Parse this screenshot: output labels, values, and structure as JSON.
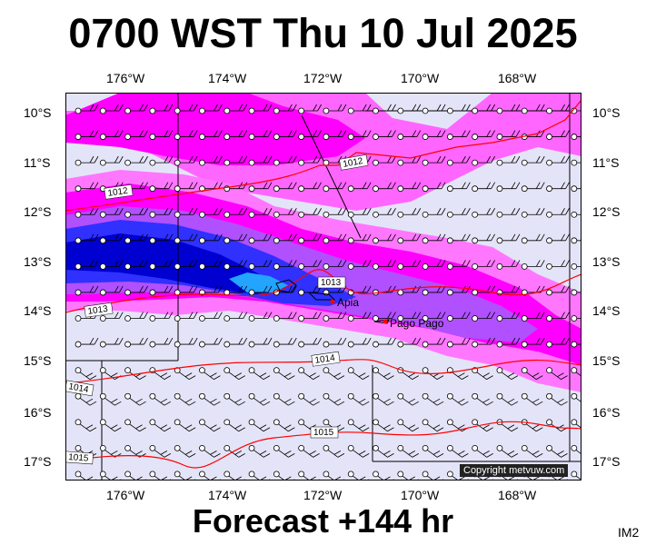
{
  "title": "0700 WST Thu 10 Jul 2025",
  "footer": "Forecast +144 hr",
  "image_id_label": "IM2",
  "copyright": "Copyright metvuw.com",
  "lon_labels": [
    "176°W",
    "174°W",
    "172°W",
    "170°W",
    "168°W"
  ],
  "lat_labels": [
    "10°S",
    "11°S",
    "12°S",
    "13°S",
    "14°S",
    "15°S",
    "16°S",
    "17°S"
  ],
  "places": [
    {
      "name": "Apia"
    },
    {
      "name": "Pago Pago"
    }
  ],
  "isobar_labels": [
    "1012",
    "1012",
    "1013",
    "1013",
    "1014",
    "1014",
    "1015",
    "1015"
  ],
  "colors": {
    "background_rain": "#e4e4f8",
    "light_magenta": "#ff77ff",
    "magenta": "#ff00ff",
    "violet": "#a040ff",
    "blue": "#2a2aff",
    "dark_blue": "#0000cc",
    "cyan_core": "#22a4ff",
    "isobar": "#ff0000",
    "place_marker": "#ff0000"
  },
  "icons": {
    "wind_barb": "wind-barb-icon",
    "place_marker": "place-marker-icon"
  }
}
